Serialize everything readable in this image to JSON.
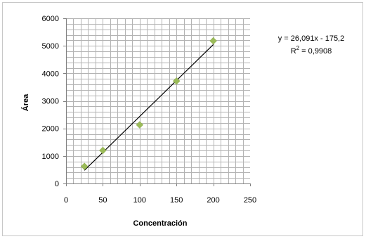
{
  "chart_data": {
    "type": "scatter",
    "title": "",
    "xlabel": "Concentración",
    "ylabel": "Área",
    "xlim": [
      0,
      250
    ],
    "ylim": [
      0,
      6000
    ],
    "x_ticks": [
      "0",
      "50",
      "100",
      "150",
      "200",
      "250"
    ],
    "y_ticks": [
      "0",
      "1000",
      "2000",
      "3000",
      "4000",
      "5000",
      "6000"
    ],
    "grid": true,
    "series": [
      {
        "points": [
          {
            "x": 25,
            "y": 620
          },
          {
            "x": 50,
            "y": 1200
          },
          {
            "x": 100,
            "y": 2130
          },
          {
            "x": 150,
            "y": 3720
          },
          {
            "x": 200,
            "y": 5180
          }
        ],
        "marker": "diamond",
        "color": "#9bbb59"
      }
    ],
    "trendline": {
      "type": "linear",
      "slope": 26.091,
      "intercept": -175.2,
      "x_range": [
        25,
        200
      ],
      "color": "#000000",
      "equation": "y = 26,091x - 175,2",
      "r2_prefix": "R",
      "r2_superscript": "2",
      "r2_value": " = 0,9908"
    }
  }
}
